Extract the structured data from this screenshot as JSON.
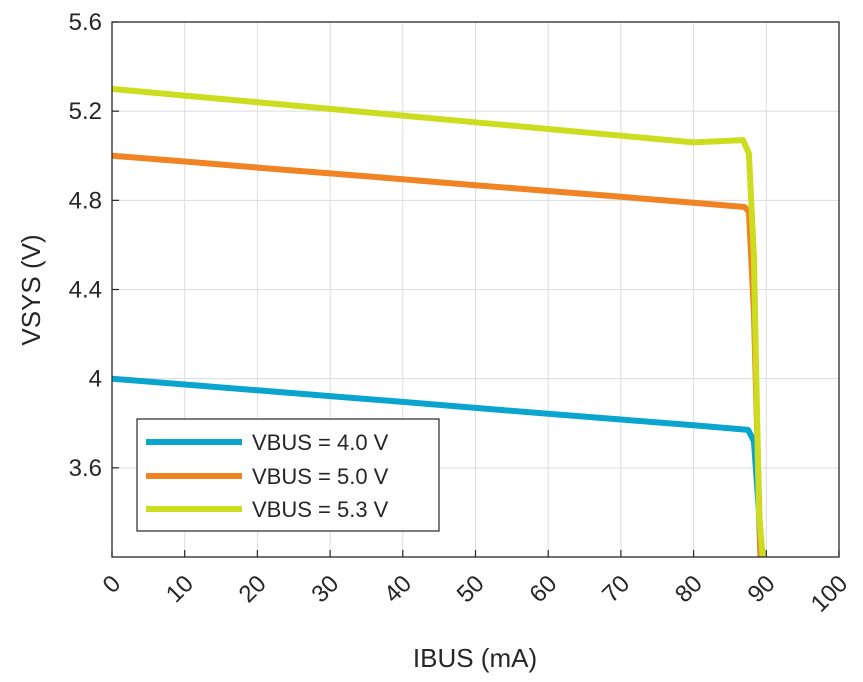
{
  "chart_data": {
    "type": "line",
    "title": "",
    "xlabel": "IBUS (mA)",
    "ylabel": "VSYS (V)",
    "xlim": [
      0,
      100
    ],
    "ylim": [
      3.2,
      5.6
    ],
    "x_ticks": [
      0,
      10,
      20,
      30,
      40,
      50,
      60,
      70,
      80,
      90,
      100
    ],
    "x_tick_labels": [
      "0",
      "10",
      "20",
      "30",
      "40",
      "50",
      "60",
      "70",
      "80",
      "90",
      "100"
    ],
    "y_ticks": [
      3.6,
      4.0,
      4.4,
      4.8,
      5.2,
      5.6
    ],
    "y_tick_labels": [
      "3.6",
      "4",
      "4.4",
      "4.8",
      "5.2",
      "5.6"
    ],
    "grid": true,
    "legend_position": "bottom-left",
    "series": [
      {
        "name": "VBUS = 4.0 V",
        "color": "#0aa5ce",
        "x": [
          0,
          10,
          20,
          30,
          40,
          50,
          60,
          70,
          80,
          87.5,
          88.3,
          89.0,
          89.2
        ],
        "y": [
          4.0,
          3.974,
          3.948,
          3.922,
          3.896,
          3.869,
          3.843,
          3.817,
          3.791,
          3.77,
          3.72,
          3.4,
          3.2
        ]
      },
      {
        "name": "VBUS = 5.0 V",
        "color": "#f08323",
        "x": [
          0,
          10,
          20,
          30,
          40,
          50,
          60,
          70,
          80,
          87.0,
          87.6,
          88.3,
          89.2
        ],
        "y": [
          5.0,
          4.974,
          4.947,
          4.921,
          4.895,
          4.868,
          4.842,
          4.816,
          4.789,
          4.77,
          4.75,
          4.3,
          3.2
        ]
      },
      {
        "name": "VBUS = 5.3 V",
        "color": "#ccdc1e",
        "x": [
          0,
          10,
          20,
          30,
          40,
          50,
          60,
          70,
          80,
          86.8,
          87.6,
          88.3,
          89.0,
          89.5
        ],
        "y": [
          5.3,
          5.27,
          5.24,
          5.21,
          5.18,
          5.15,
          5.12,
          5.09,
          5.06,
          5.07,
          5.01,
          4.55,
          3.4,
          3.2
        ]
      }
    ]
  }
}
